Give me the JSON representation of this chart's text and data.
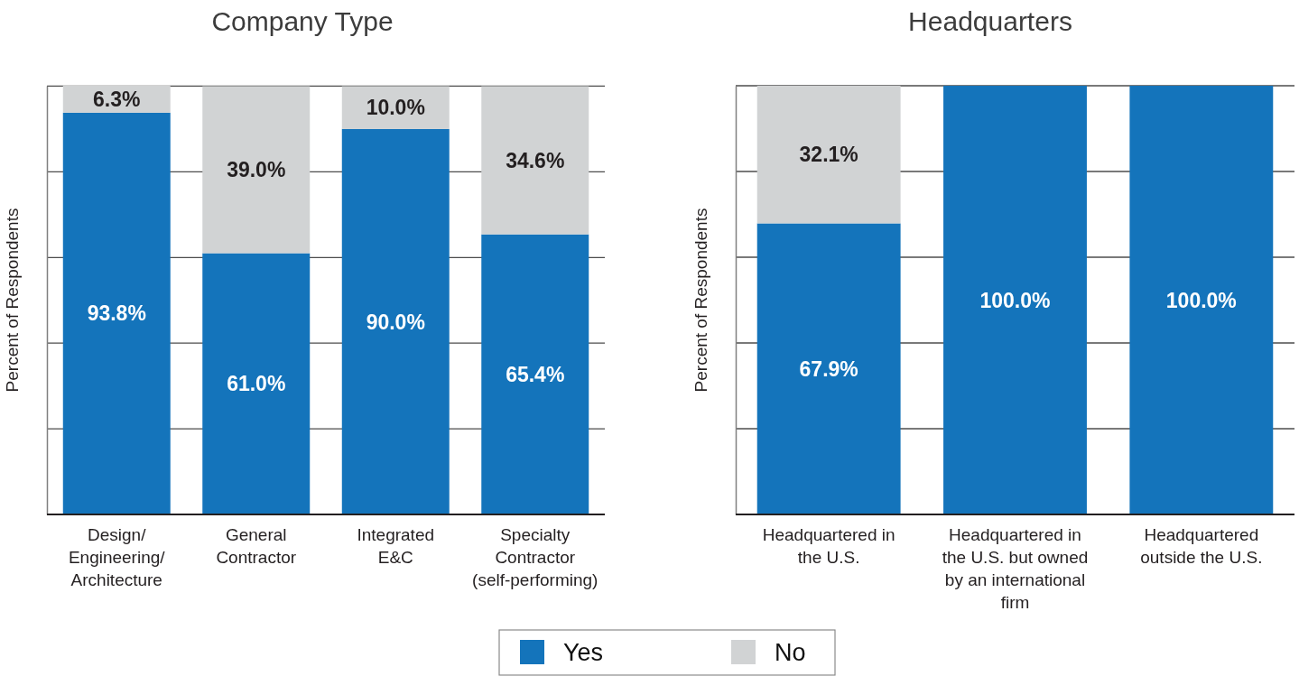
{
  "chart_data": [
    {
      "type": "bar",
      "title": "Company Type",
      "ylabel": "Percent of Respondents",
      "categories": [
        "Design/Engineering/Architecture",
        "General Contractor",
        "Integrated E&C",
        "Specialty Contractor (self-performing)"
      ],
      "stacked": true,
      "series": [
        {
          "name": "Yes",
          "color": "#1474bb",
          "values": [
            93.8,
            61.0,
            90.0,
            65.4
          ],
          "value_labels": [
            "93.8%",
            "61.0%",
            "90.0%",
            "65.4%"
          ]
        },
        {
          "name": "No",
          "color": "#d1d3d4",
          "values": [
            6.3,
            39.0,
            10.0,
            34.6
          ],
          "value_labels": [
            "6.3%",
            "39.0%",
            "10.0%",
            "34.6%"
          ]
        }
      ],
      "ylim": [
        0,
        100.1
      ],
      "yticks": [
        {
          "value": 0,
          "label": null
        },
        {
          "value": 20,
          "label": null
        },
        {
          "value": 40,
          "label": null
        },
        {
          "value": 60,
          "label": null
        },
        {
          "value": 80,
          "label": null
        },
        {
          "value": 100,
          "label": null
        }
      ],
      "grid": "y",
      "tick_labels": "x",
      "legend": "bottom"
    },
    {
      "type": "bar",
      "title": "Headquarters",
      "ylabel": "Percent of Respondents",
      "categories": [
        "Headquartered in the U.S.",
        "Headquartered in the U.S. but owned by an international firm",
        "Headquartered outside the U.S."
      ],
      "stacked": true,
      "series": [
        {
          "name": "Yes",
          "color": "#1474bb",
          "values": [
            67.9,
            100.0,
            100.0
          ],
          "value_labels": [
            "67.9%",
            "100.0%",
            "100.0%"
          ]
        },
        {
          "name": "No",
          "color": "#d1d3d4",
          "values": [
            32.1,
            0,
            0
          ],
          "value_labels": [
            "32.1%",
            null,
            null
          ]
        }
      ],
      "ylim": [
        0,
        100
      ],
      "yticks": [
        {
          "value": 0,
          "label": null
        },
        {
          "value": 20,
          "label": null
        },
        {
          "value": 40,
          "label": null
        },
        {
          "value": 60,
          "label": null
        },
        {
          "value": 80,
          "label": null
        },
        {
          "value": 100,
          "label": null
        }
      ],
      "grid": "y",
      "tick_labels": "x",
      "legend": "bottom"
    }
  ]
}
